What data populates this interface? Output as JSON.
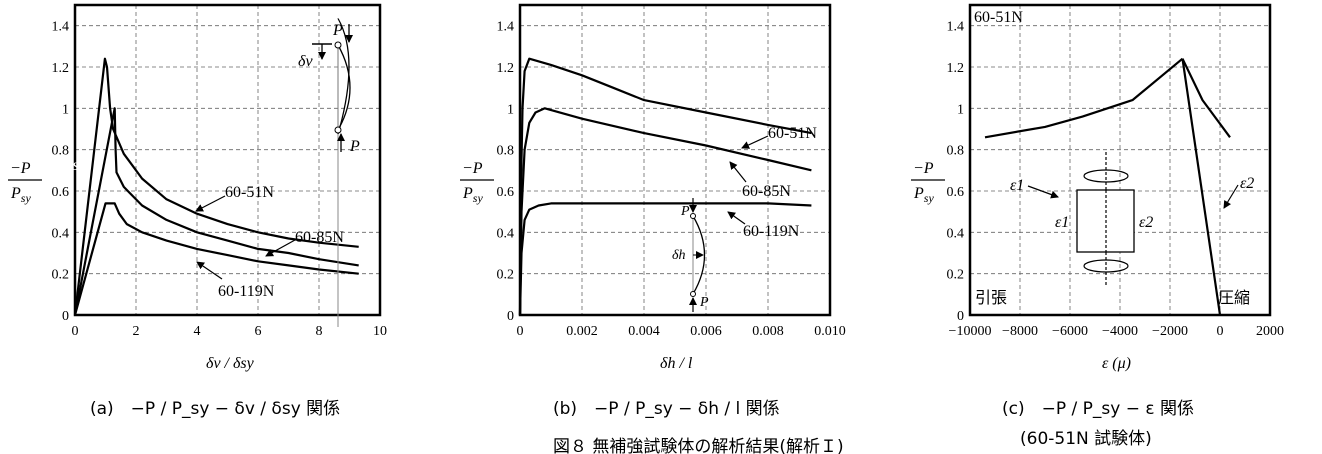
{
  "figure_caption": "図８ 無補強試験体の解析結果(解析Ｉ)",
  "chart_data": [
    {
      "type": "line",
      "caption": "(a)　−P / P_sy − δv / δsy 関係",
      "xlabel": "δv / δsy",
      "ylabel": "−P / P_sy",
      "xlim": [
        0,
        10
      ],
      "ylim": [
        0,
        1.5
      ],
      "xticks": [
        0,
        2,
        4,
        6,
        8,
        10
      ],
      "yticks": [
        0,
        0.2,
        0.4,
        0.6,
        0.8,
        1,
        1.2,
        1.4
      ],
      "grid": true,
      "series": [
        {
          "name": "60-51N",
          "x": [
            0,
            0.98,
            1.05,
            1.15,
            1.25,
            1.6,
            2.2,
            3.0,
            4.0,
            5.0,
            6.0,
            7.0,
            8.0,
            9.3
          ],
          "y": [
            0,
            1.24,
            1.2,
            1.0,
            0.9,
            0.78,
            0.66,
            0.56,
            0.49,
            0.44,
            0.4,
            0.37,
            0.35,
            0.33
          ]
        },
        {
          "name": "60-85N",
          "x": [
            0,
            1.3,
            1.33,
            1.36,
            1.6,
            2.2,
            3.0,
            4.0,
            5.0,
            6.0,
            7.0,
            8.0,
            9.3
          ],
          "y": [
            0,
            1.0,
            0.8,
            0.69,
            0.62,
            0.53,
            0.46,
            0.4,
            0.36,
            0.32,
            0.3,
            0.27,
            0.24
          ]
        },
        {
          "name": "60-119N",
          "x": [
            0,
            1.0,
            1.3,
            1.45,
            1.7,
            2.2,
            3.0,
            4.0,
            5.0,
            6.0,
            7.0,
            8.0,
            9.3
          ],
          "y": [
            0,
            0.54,
            0.54,
            0.49,
            0.44,
            0.4,
            0.36,
            0.32,
            0.29,
            0.26,
            0.24,
            0.22,
            0.2
          ]
        }
      ],
      "series_labels": [
        "60-51N",
        "60-85N",
        "60-119N"
      ],
      "inset_labels": [
        "P",
        "δv",
        "P"
      ]
    },
    {
      "type": "line",
      "caption": "(b)　−P / P_sy − δh / l 関係",
      "xlabel": "δh / l",
      "ylabel": "−P / P_sy",
      "xlim": [
        0,
        0.01
      ],
      "ylim": [
        0,
        1.5
      ],
      "xticks": [
        0,
        0.002,
        0.004,
        0.006,
        0.008,
        0.01
      ],
      "xtick_labels": [
        "0",
        "0.002",
        "0.004",
        "0.006",
        "0.008",
        "0.010"
      ],
      "yticks": [
        0,
        0.2,
        0.4,
        0.6,
        0.8,
        1,
        1.2,
        1.4
      ],
      "grid": true,
      "series": [
        {
          "name": "60-51N",
          "x": [
            0,
            3e-05,
            8e-05,
            0.00015,
            0.0003,
            0.001,
            0.002,
            0.003,
            0.004,
            0.006,
            0.008,
            0.0094
          ],
          "y": [
            0,
            0.6,
            1.0,
            1.18,
            1.24,
            1.21,
            1.16,
            1.1,
            1.04,
            0.98,
            0.92,
            0.88
          ]
        },
        {
          "name": "60-85N",
          "x": [
            0,
            5e-05,
            0.00015,
            0.0003,
            0.0005,
            0.0008,
            0.002,
            0.004,
            0.006,
            0.008,
            0.0094
          ],
          "y": [
            0,
            0.5,
            0.8,
            0.93,
            0.98,
            1.0,
            0.95,
            0.88,
            0.82,
            0.75,
            0.7
          ]
        },
        {
          "name": "60-119N",
          "x": [
            0,
            5e-05,
            0.00015,
            0.0003,
            0.0006,
            0.001,
            0.003,
            0.006,
            0.008,
            0.0094
          ],
          "y": [
            0,
            0.3,
            0.46,
            0.51,
            0.53,
            0.54,
            0.54,
            0.54,
            0.54,
            0.53
          ]
        }
      ],
      "series_labels": [
        "60-51N",
        "60-85N",
        "60-119N"
      ],
      "inset_labels": [
        "P",
        "δh",
        "P"
      ]
    },
    {
      "type": "line",
      "caption": "(c)　−P / P_sy − ε 関係",
      "subcaption": "(60-51N 試験体)",
      "xlabel": "ε (μ)",
      "ylabel": "−P / P_sy",
      "xlim": [
        -10000,
        2000
      ],
      "ylim": [
        0,
        1.5
      ],
      "xticks": [
        -10000,
        -8000,
        -6000,
        -4000,
        -2000,
        0,
        2000
      ],
      "xtick_labels": [
        "−10000",
        "−8000",
        "−6000",
        "−4000",
        "−2000",
        "0",
        "2000"
      ],
      "yticks": [
        0,
        0.2,
        0.4,
        0.6,
        0.8,
        1,
        1.2,
        1.4
      ],
      "grid": true,
      "series": [
        {
          "name": "ε1",
          "x": [
            -9400,
            -7000,
            -5500,
            -3500,
            -1500
          ],
          "y": [
            0.86,
            0.91,
            0.96,
            1.04,
            1.24
          ]
        },
        {
          "name": "ε2",
          "x": [
            -1500,
            -700,
            400
          ],
          "y": [
            1.24,
            1.04,
            0.86
          ]
        },
        {
          "name": "ε",
          "x": [
            -1500,
            0
          ],
          "y": [
            1.24,
            0
          ]
        }
      ],
      "corner_label": "60-51N",
      "series_labels": [
        "ε1",
        "ε2"
      ],
      "inset_labels": [
        "ε1",
        "ε2"
      ],
      "region_labels": [
        "引張",
        "圧縮"
      ]
    }
  ]
}
